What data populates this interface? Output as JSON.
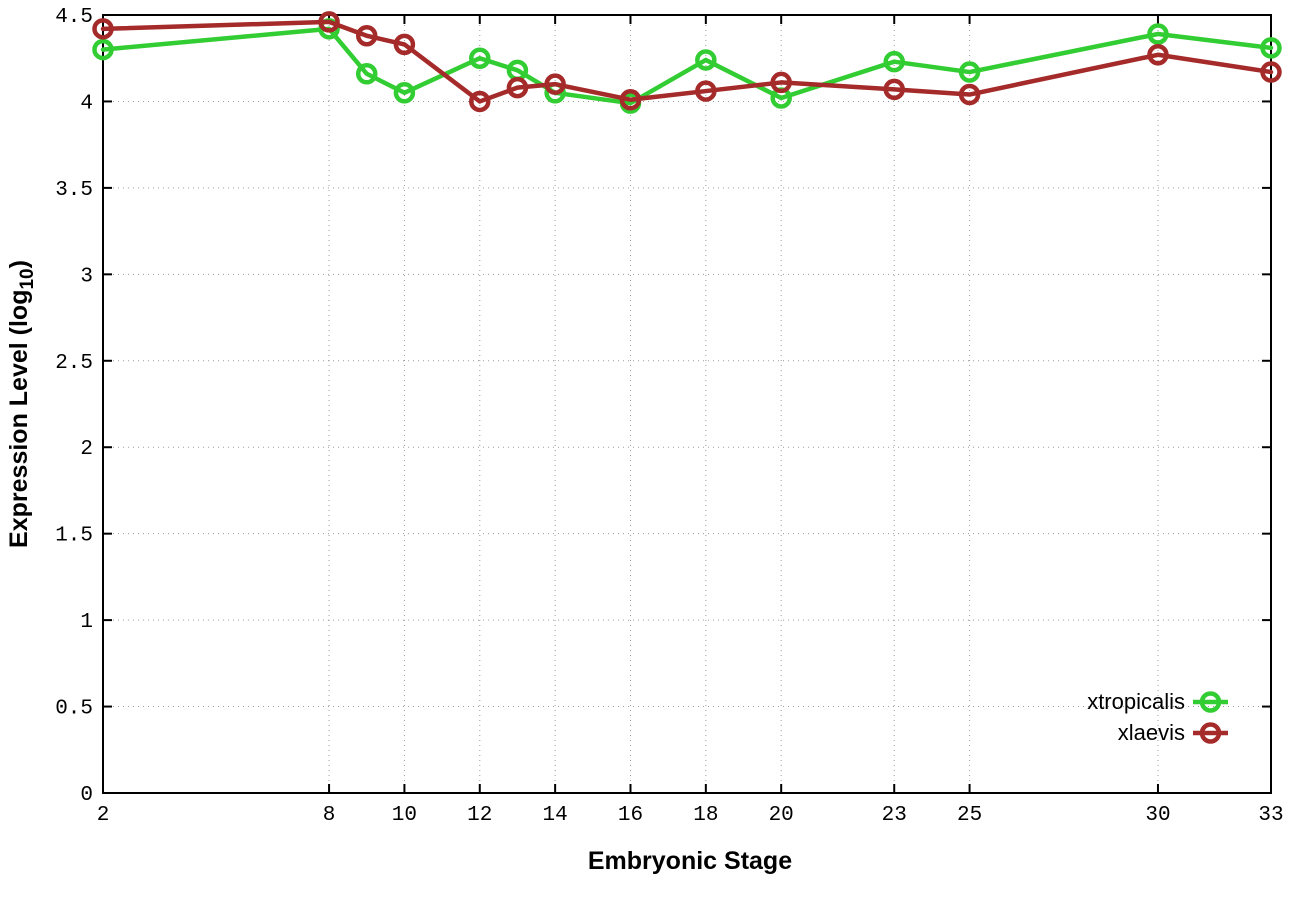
{
  "chart_data": {
    "type": "line",
    "xlabel": "Embryonic Stage",
    "ylabel_parts": [
      "Expression Level (log",
      "10",
      ")"
    ],
    "x": [
      2,
      8,
      9,
      10,
      12,
      13,
      14,
      16,
      18,
      20,
      23,
      25,
      30,
      33
    ],
    "xlim": [
      2,
      33
    ],
    "ylim": [
      0,
      4.5
    ],
    "xticks": [
      {
        "value": 2,
        "label": "2"
      },
      {
        "value": 8,
        "label": "8"
      },
      {
        "value": 10,
        "label": "10"
      },
      {
        "value": 12,
        "label": "12"
      },
      {
        "value": 14,
        "label": "14"
      },
      {
        "value": 16,
        "label": "16"
      },
      {
        "value": 18,
        "label": "18"
      },
      {
        "value": 20,
        "label": "20"
      },
      {
        "value": 23,
        "label": "23"
      },
      {
        "value": 25,
        "label": "25"
      },
      {
        "value": 30,
        "label": "30"
      },
      {
        "value": 33,
        "label": "33"
      }
    ],
    "yticks": [
      {
        "value": 0,
        "label": "0"
      },
      {
        "value": 0.5,
        "label": "0.5"
      },
      {
        "value": 1,
        "label": "1"
      },
      {
        "value": 1.5,
        "label": "1.5"
      },
      {
        "value": 2,
        "label": "2"
      },
      {
        "value": 2.5,
        "label": "2.5"
      },
      {
        "value": 3,
        "label": "3"
      },
      {
        "value": 3.5,
        "label": "3.5"
      },
      {
        "value": 4,
        "label": "4"
      },
      {
        "value": 4.5,
        "label": "4.5"
      }
    ],
    "grid": true,
    "legend_position": "inside-bottom-right",
    "marker": "open-circle",
    "series": [
      {
        "name": "xtropicalis",
        "color": "#32cd32",
        "values": [
          4.3,
          4.42,
          4.16,
          4.05,
          4.25,
          4.18,
          4.05,
          3.99,
          4.24,
          4.02,
          4.23,
          4.17,
          4.39,
          4.31
        ]
      },
      {
        "name": "xlaevis",
        "color": "#a52a2a",
        "values": [
          4.42,
          4.46,
          4.38,
          4.33,
          4.0,
          4.08,
          4.1,
          4.01,
          4.06,
          4.11,
          4.07,
          4.04,
          4.27,
          4.17
        ]
      }
    ]
  },
  "colors": {
    "border": "#000000",
    "grid": "#9a9a9a",
    "tick_text": "#000000",
    "label_text": "#000000",
    "background": "#ffffff"
  }
}
